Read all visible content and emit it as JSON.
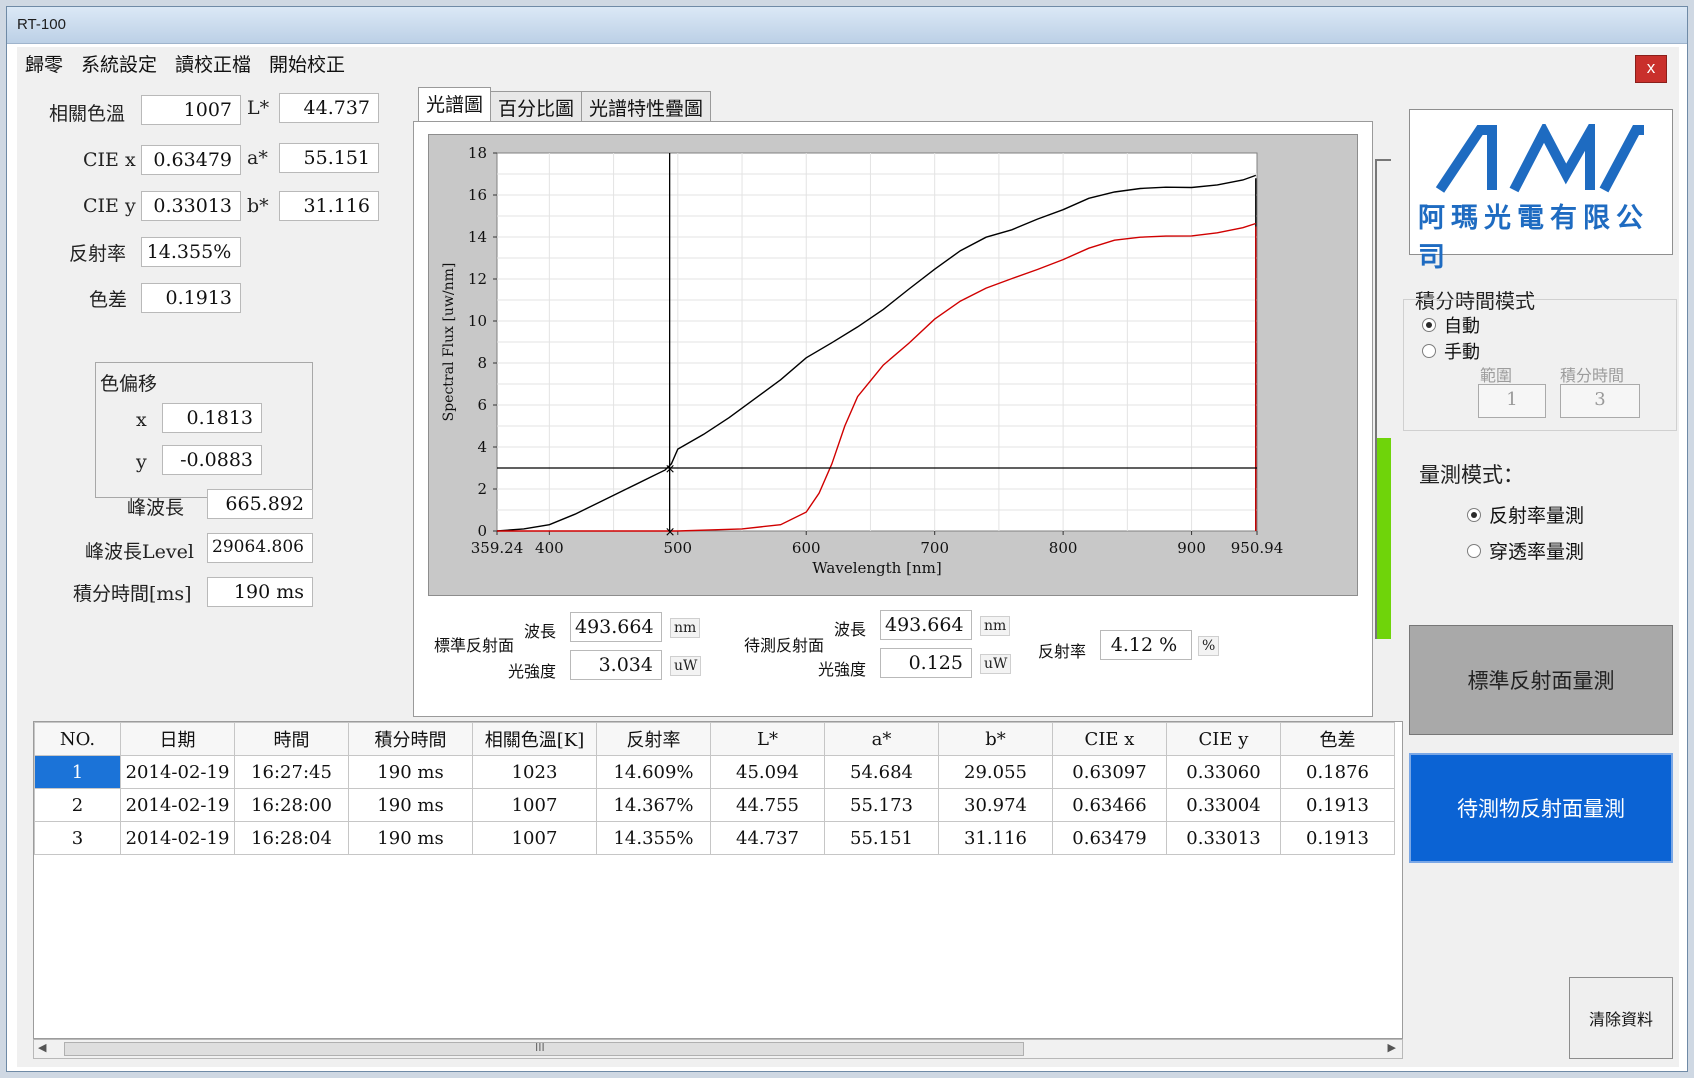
{
  "window": {
    "title": "RT-100"
  },
  "menu": [
    "歸零",
    "系統設定",
    "讀校正檔",
    "開始校正"
  ],
  "close_label": "x",
  "left": {
    "cct_label": "相關色溫",
    "cct": "1007",
    "L_label": "L*",
    "L": "44.737",
    "ciex_label": "CIE x",
    "ciex": "0.63479",
    "a_label": "a*",
    "a": "55.151",
    "ciey_label": "CIE y",
    "ciey": "0.33013",
    "b_label": "b*",
    "b": "31.116",
    "refl_label": "反射率",
    "refl": "14.355%",
    "de_label": "色差",
    "de": "0.1913",
    "shift_group": "色偏移",
    "shift_x_label": "x",
    "shift_x": "0.1813",
    "shift_y_label": "y",
    "shift_y": "-0.0883",
    "peak_label": "峰波長",
    "peak": "665.892",
    "peak_level_label": "峰波長Level",
    "peak_level": "29064.806",
    "int_time_label": "積分時間[ms]",
    "int_time": "190 ms"
  },
  "tabs": [
    "光譜圖",
    "百分比圖",
    "光譜特性疊圖"
  ],
  "readout": {
    "std_label": "標準反射面",
    "std_wl_label": "波長",
    "std_wl": "493.664",
    "std_wl_unit": "nm",
    "std_int_label": "光強度",
    "std_int": "3.034",
    "std_int_unit": "uW",
    "sample_label": "待測反射面",
    "sample_wl_label": "波長",
    "sample_wl": "493.664",
    "sample_wl_unit": "nm",
    "sample_int_label": "光強度",
    "sample_int": "0.125",
    "sample_int_unit": "uW",
    "ratio_label": "反射率",
    "ratio": "4.12 %",
    "ratio_unit": "%"
  },
  "chart_data": {
    "type": "line",
    "xlabel": "Wavelength [nm]",
    "ylabel": "Spectral Flux [uw/nm]",
    "xlim": [
      359.24,
      950.94
    ],
    "ylim": [
      0,
      18
    ],
    "x_ticks": [
      "359.24",
      "400",
      "500",
      "600",
      "700",
      "800",
      "900",
      "950.94"
    ],
    "y_ticks": [
      "0",
      "2",
      "4",
      "6",
      "8",
      "10",
      "12",
      "14",
      "16",
      "18"
    ],
    "grid": true,
    "cursor": {
      "x": 493.664,
      "y": 3.0
    },
    "series": [
      {
        "color": "#000000",
        "x": [
          359.24,
          380,
          400,
          420,
          440,
          460,
          480,
          490,
          495,
          500,
          520,
          540,
          560,
          580,
          600,
          620,
          640,
          660,
          680,
          700,
          720,
          740,
          760,
          780,
          800,
          820,
          840,
          860,
          880,
          900,
          920,
          940,
          950
        ],
        "y": [
          0.0,
          0.1,
          0.3,
          0.8,
          1.4,
          2.0,
          2.6,
          2.9,
          3.2,
          3.9,
          4.6,
          5.4,
          6.3,
          7.2,
          8.1,
          8.9,
          9.8,
          10.7,
          11.6,
          12.4,
          13.2,
          13.9,
          14.4,
          15.0,
          15.4,
          15.8,
          16.0,
          16.2,
          16.4,
          16.5,
          16.6,
          16.7,
          16.8
        ]
      },
      {
        "color": "#d00000",
        "x": [
          359.24,
          400,
          450,
          500,
          550,
          580,
          600,
          610,
          620,
          630,
          640,
          660,
          680,
          700,
          720,
          740,
          760,
          780,
          800,
          820,
          840,
          860,
          880,
          900,
          920,
          940,
          950
        ],
        "y": [
          0.0,
          0.0,
          0.0,
          0.0,
          0.1,
          0.3,
          0.9,
          1.8,
          3.2,
          5.0,
          6.4,
          7.9,
          9.0,
          10.0,
          10.8,
          11.5,
          12.1,
          12.6,
          13.0,
          13.4,
          13.7,
          13.9,
          14.1,
          14.2,
          14.3,
          14.4,
          14.5
        ]
      }
    ]
  },
  "progress_level": 0.42,
  "logo": {
    "mark": "AMA",
    "company": "阿瑪光電有限公司"
  },
  "integration_mode": {
    "title": "積分時間模式",
    "auto": "自動",
    "manual": "手動",
    "range_label": "範圍",
    "time_label": "積分時間",
    "range": "1",
    "time": "3"
  },
  "measure_mode": {
    "title": "量測模式：",
    "reflect": "反射率量測",
    "transmit": "穿透率量測"
  },
  "buttons": {
    "std_measure": "標準反射面量測",
    "sample_measure": "待測物反射面量測",
    "clear": "清除資料"
  },
  "table": {
    "headers": [
      "NO.",
      "日期",
      "時間",
      "積分時間",
      "相關色溫[K]",
      "反射率",
      "L*",
      "a*",
      "b*",
      "CIE x",
      "CIE y",
      "色差"
    ],
    "rows": [
      [
        "1",
        "2014-02-19",
        "16:27:45",
        "190 ms",
        "1023",
        "14.609%",
        "45.094",
        "54.684",
        "29.055",
        "0.63097",
        "0.33060",
        "0.1876"
      ],
      [
        "2",
        "2014-02-19",
        "16:28:00",
        "190 ms",
        "1007",
        "14.367%",
        "44.755",
        "55.173",
        "30.974",
        "0.63466",
        "0.33004",
        "0.1913"
      ],
      [
        "3",
        "2014-02-19",
        "16:28:04",
        "190 ms",
        "1007",
        "14.355%",
        "44.737",
        "55.151",
        "31.116",
        "0.63479",
        "0.33013",
        "0.1913"
      ]
    ]
  },
  "scroll_grip": "III"
}
